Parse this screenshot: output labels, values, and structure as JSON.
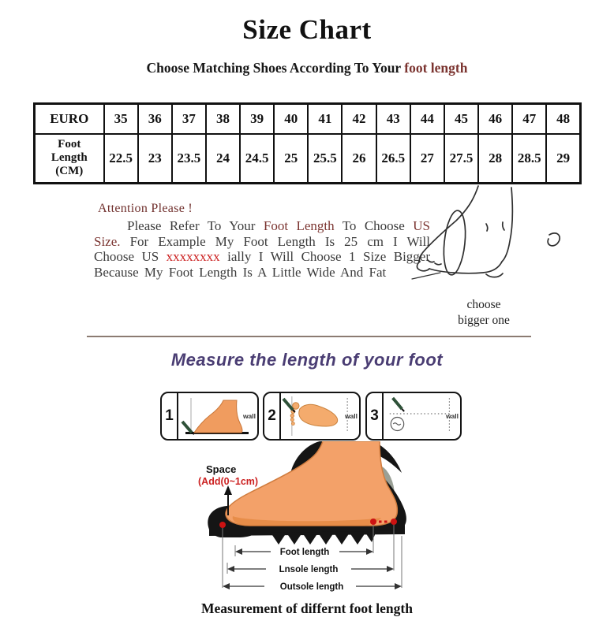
{
  "title": "Size Chart",
  "subtitle": {
    "prefix": "Choose Matching Shoes According To Your ",
    "highlight": "foot length"
  },
  "size_table": {
    "row1_label": "EURO",
    "row2_label": "Foot Length (CM)",
    "euro_sizes": [
      "35",
      "36",
      "37",
      "38",
      "39",
      "40",
      "41",
      "42",
      "43",
      "44",
      "45",
      "46",
      "47",
      "48"
    ],
    "foot_lengths_cm": [
      "22.5",
      "23",
      "23.5",
      "24",
      "24.5",
      "25",
      "25.5",
      "26",
      "26.5",
      "27",
      "27.5",
      "28",
      "28.5",
      "29"
    ]
  },
  "attention": {
    "heading": "Attention Please !",
    "segments": [
      {
        "text": "Please Refer To Your ",
        "style": "body"
      },
      {
        "text": "Foot Length",
        "style": "maroon"
      },
      {
        "text": " To Choose ",
        "style": "body"
      },
      {
        "text": "US Size.",
        "style": "maroon"
      },
      {
        "text": " For Example My Foot Length Is 25 cm I Will Choose US ",
        "style": "body"
      },
      {
        "text": "xxxxxxxx",
        "style": "red"
      },
      {
        "text": " ially I Will Choose 1 Size Bigger Because My Foot Length Is A Little Wide And Fat",
        "style": "body"
      }
    ],
    "note_line1": "choose",
    "note_line2": "bigger one"
  },
  "measure": {
    "heading": "Measure the length of your foot",
    "steps": [
      {
        "number": "1",
        "wall_label": "wall"
      },
      {
        "number": "2",
        "wall_label": "wall"
      },
      {
        "number": "3",
        "wall_label": "wall"
      }
    ],
    "space_label": "Space",
    "space_add_label": "(Add(0~1cm)",
    "measurements": [
      "Foot length",
      "Lnsole length",
      "Outsole length"
    ],
    "caption": "Measurement of differnt foot length"
  },
  "colors": {
    "accent_maroon": "#7b3430",
    "accent_red": "#cc2222",
    "heading_purple": "#4a3d73",
    "foot_skin": "#f3a169",
    "pencil_green": "#2e5138"
  }
}
